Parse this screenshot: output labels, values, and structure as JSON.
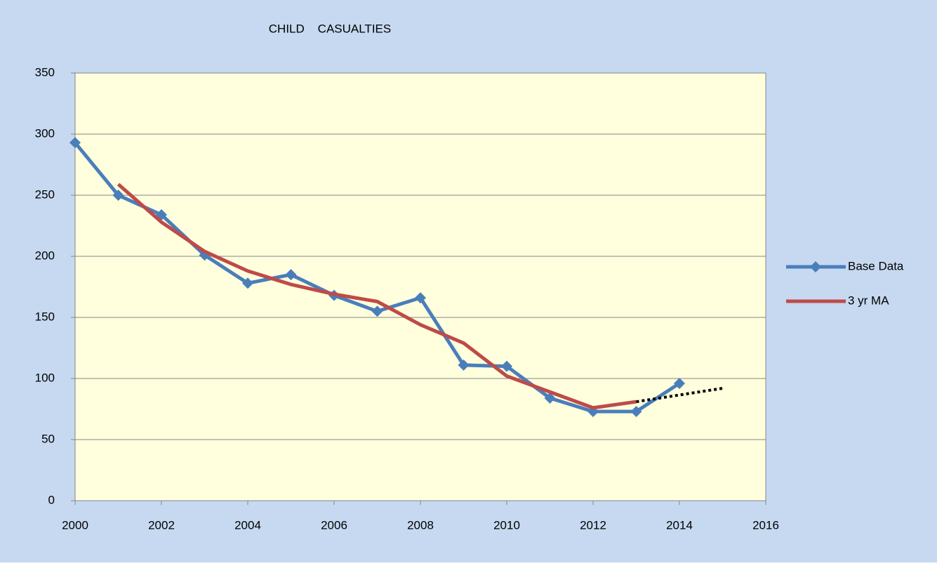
{
  "chart_data": {
    "type": "line",
    "title": "CHILD    CASUALTIES",
    "x": [
      2000,
      2001,
      2002,
      2003,
      2004,
      2005,
      2006,
      2007,
      2008,
      2009,
      2010,
      2011,
      2012,
      2013,
      2014,
      2015
    ],
    "series": [
      {
        "name": "Base Data",
        "color": "#4a7ebb",
        "marker": "diamond",
        "values": [
          293,
          250,
          234,
          201,
          178,
          185,
          168,
          155,
          166,
          111,
          110,
          84,
          73,
          73,
          96,
          null
        ]
      },
      {
        "name": "3 yr MA",
        "color": "#be4b48",
        "values": [
          null,
          259,
          228,
          204,
          188,
          177,
          169,
          163,
          144,
          129,
          102,
          89,
          76,
          81,
          null,
          null
        ]
      },
      {
        "color": "#000000",
        "dashed": true,
        "x": [
          2013,
          2015
        ],
        "values": [
          81,
          92
        ]
      }
    ],
    "xlim": [
      2000,
      2016
    ],
    "xticks": [
      2000,
      2002,
      2004,
      2006,
      2008,
      2010,
      2012,
      2014,
      2016
    ],
    "ylim": [
      0,
      350
    ],
    "yticks": [
      0,
      50,
      100,
      150,
      200,
      250,
      300,
      350
    ],
    "grid": true,
    "legend": "right",
    "background": "#c6d9f1",
    "plot_background": "#ffffdd"
  }
}
